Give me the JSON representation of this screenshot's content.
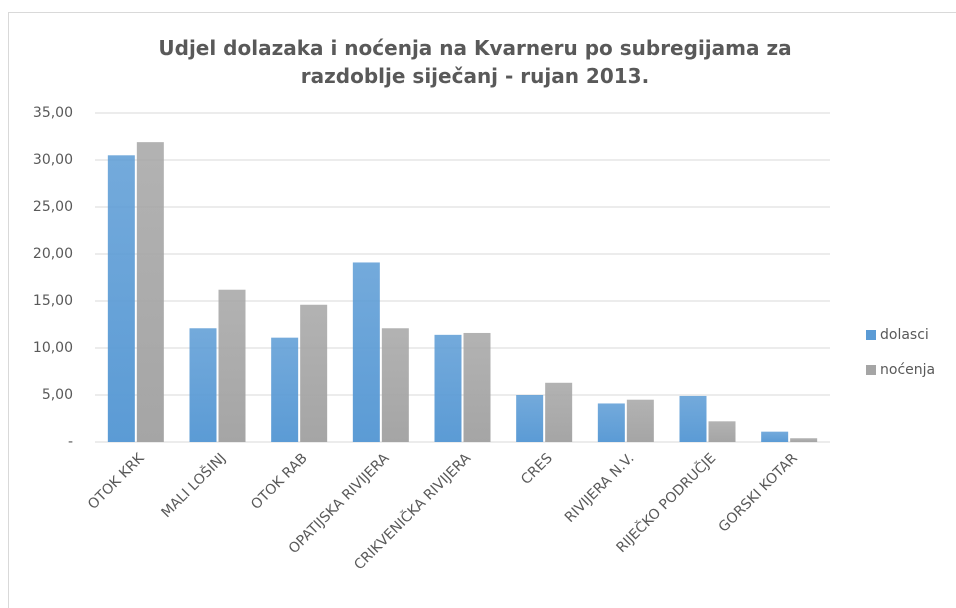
{
  "chart_data": {
    "type": "bar",
    "title": "Udjel dolazaka i noćenja na Kvarneru po subregijama za razdoblje siječanj - rujan 2013.",
    "categories": [
      "OTOK KRK",
      "MALI LOŠINJ",
      "OTOK RAB",
      "OPATIJSKA RIVIJERA",
      "CRIKVENIČKA RIVIJERA",
      "CRES",
      "RIVIJERA N.V.",
      "RIJEČKO PODRUČJE",
      "GORSKI KOTAR"
    ],
    "series": [
      {
        "name": "dolasci",
        "color": "#5b9bd5",
        "values": [
          30.5,
          12.1,
          11.1,
          19.1,
          11.4,
          5.0,
          4.1,
          4.9,
          1.1
        ]
      },
      {
        "name": "noćenja",
        "color": "#a5a5a5",
        "values": [
          31.9,
          16.2,
          14.6,
          12.1,
          11.6,
          6.3,
          4.5,
          2.2,
          0.4
        ]
      }
    ],
    "ylim": [
      0,
      35
    ],
    "yticks": [
      {
        "value": 0,
        "label": "-"
      },
      {
        "value": 5,
        "label": "5,00"
      },
      {
        "value": 10,
        "label": "10,00"
      },
      {
        "value": 15,
        "label": "15,00"
      },
      {
        "value": 20,
        "label": "20,00"
      },
      {
        "value": 25,
        "label": "25,00"
      },
      {
        "value": 30,
        "label": "30,00"
      },
      {
        "value": 35,
        "label": "35,00"
      }
    ],
    "grid": true,
    "legend": "right"
  }
}
